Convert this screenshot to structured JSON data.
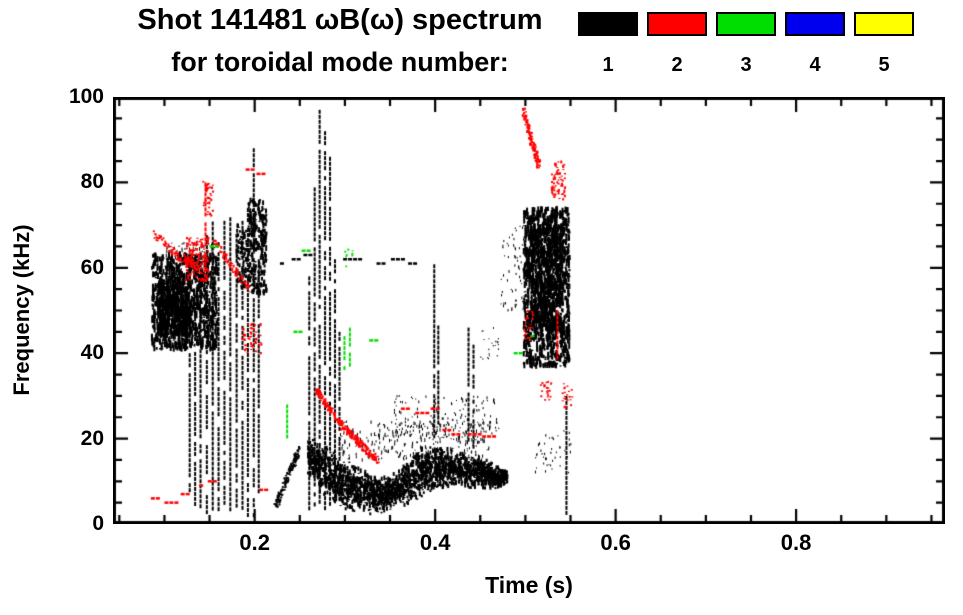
{
  "page": {
    "background": "#ffffff"
  },
  "header": {
    "title": "Shot 141481 ωB(ω) spectrum",
    "subtitle": "for toroidal mode number:"
  },
  "legend": {
    "items": [
      {
        "label": "1",
        "color": "#000000"
      },
      {
        "label": "2",
        "color": "#ff0000"
      },
      {
        "label": "3",
        "color": "#00dd00"
      },
      {
        "label": "4",
        "color": "#0000ee"
      },
      {
        "label": "5",
        "color": "#ffff00"
      }
    ]
  },
  "chart_data": {
    "type": "scatter",
    "title": "Shot 141481 ωB(ω) spectrum for toroidal mode number: 1 2 3 4 5",
    "xlabel": "Time (s)",
    "ylabel": "Frequency (kHz)",
    "xlim": [
      0.043,
      0.965
    ],
    "ylim": [
      0,
      100
    ],
    "grid": false,
    "legend_position": "top-right",
    "x_ticks": [
      {
        "v": 0.2,
        "label": "0.2"
      },
      {
        "v": 0.4,
        "label": "0.4"
      },
      {
        "v": 0.6,
        "label": "0.6"
      },
      {
        "v": 0.8,
        "label": "0.8"
      }
    ],
    "x_minor_step": 0.05,
    "y_ticks": [
      {
        "v": 0,
        "label": "0"
      },
      {
        "v": 20,
        "label": "20"
      },
      {
        "v": 40,
        "label": "40"
      },
      {
        "v": 60,
        "label": "60"
      },
      {
        "v": 80,
        "label": "80"
      },
      {
        "v": 100,
        "label": "100"
      }
    ],
    "y_minor_step": 5,
    "modes": {
      "1": "#000000",
      "2": "#ff0000",
      "3": "#00dd00",
      "4": "#0000ee",
      "5": "#ffff00"
    },
    "features": [
      {
        "mode": 1,
        "type": "speckle",
        "t": [
          0.085,
          0.158
        ],
        "f": [
          41,
          63
        ],
        "n": 900,
        "dh": [
          2,
          8
        ]
      },
      {
        "mode": 1,
        "type": "speckle",
        "t": [
          0.092,
          0.128
        ],
        "f": [
          44,
          57
        ],
        "n": 500,
        "dh": [
          2,
          8
        ]
      },
      {
        "mode": 1,
        "type": "speckle",
        "t": [
          0.1,
          0.155
        ],
        "f": [
          57,
          66
        ],
        "n": 140,
        "dh": [
          1,
          4
        ]
      },
      {
        "mode": 1,
        "type": "vlines",
        "w": 2,
        "lines": [
          [
            0.128,
            8,
            40
          ],
          [
            0.134,
            5,
            52
          ],
          [
            0.14,
            4,
            62
          ],
          [
            0.147,
            3,
            70
          ],
          [
            0.1535,
            3,
            72
          ],
          [
            0.16,
            3,
            66
          ],
          [
            0.1665,
            4,
            71
          ],
          [
            0.173,
            3,
            73
          ],
          [
            0.18,
            3,
            68
          ],
          [
            0.1865,
            3,
            71
          ],
          [
            0.1925,
            2,
            74
          ],
          [
            0.199,
            2,
            88
          ],
          [
            0.2045,
            8,
            62
          ]
        ]
      },
      {
        "mode": 1,
        "type": "speckle",
        "t": [
          0.192,
          0.212
        ],
        "f": [
          54,
          76
        ],
        "n": 260,
        "dh": [
          2,
          6
        ]
      },
      {
        "mode": 1,
        "type": "speckle",
        "t": [
          0.178,
          0.195
        ],
        "f": [
          55,
          70
        ],
        "n": 120,
        "dh": [
          2,
          5
        ]
      },
      {
        "mode": 1,
        "type": "chirp",
        "p": [
          [
            0.222,
            4
          ],
          [
            0.2475,
            17
          ]
        ],
        "n": 120,
        "jit": 1.1,
        "dh": [
          2,
          3
        ]
      },
      {
        "mode": 1,
        "type": "vlines",
        "w": 2,
        "lines": [
          [
            0.2605,
            3,
            58
          ],
          [
            0.2665,
            5,
            80
          ],
          [
            0.272,
            5,
            97
          ],
          [
            0.278,
            4,
            92
          ],
          [
            0.2835,
            5,
            86
          ],
          [
            0.289,
            5,
            62
          ],
          [
            0.294,
            6,
            45
          ]
        ]
      },
      {
        "mode": 1,
        "type": "band",
        "n": 2200,
        "dh": [
          2,
          5
        ],
        "path": [
          [
            0.258,
            16,
            5
          ],
          [
            0.272,
            13,
            6
          ],
          [
            0.287,
            11,
            6
          ],
          [
            0.302,
            9,
            6
          ],
          [
            0.317,
            8,
            5
          ],
          [
            0.332,
            7,
            5
          ],
          [
            0.347,
            7,
            4
          ],
          [
            0.362,
            9,
            5
          ],
          [
            0.377,
            11,
            6
          ],
          [
            0.392,
            13,
            6
          ],
          [
            0.407,
            13,
            5
          ],
          [
            0.422,
            13,
            5
          ],
          [
            0.437,
            12,
            4
          ],
          [
            0.452,
            12,
            4
          ],
          [
            0.467,
            11,
            3
          ],
          [
            0.479,
            11,
            2
          ]
        ]
      },
      {
        "mode": 1,
        "type": "speckle",
        "t": [
          0.29,
          0.46
        ],
        "f": [
          15,
          24
        ],
        "n": 300,
        "dh": [
          1,
          4
        ]
      },
      {
        "mode": 1,
        "type": "speckle",
        "t": [
          0.352,
          0.47
        ],
        "f": [
          20,
          30
        ],
        "n": 160,
        "dh": [
          1,
          3
        ]
      },
      {
        "mode": 1,
        "type": "vlines",
        "w": 2,
        "lines": [
          [
            0.399,
            20,
            62
          ],
          [
            0.4035,
            22,
            50
          ],
          [
            0.437,
            19,
            46
          ],
          [
            0.4425,
            18,
            42
          ]
        ]
      },
      {
        "mode": 1,
        "type": "hdashes",
        "h": 2.5,
        "lines": [
          [
            0.228,
            0.237,
            61
          ],
          [
            0.241,
            0.25,
            62
          ],
          [
            0.254,
            0.261,
            63
          ],
          [
            0.298,
            0.316,
            62
          ],
          [
            0.335,
            0.346,
            61
          ],
          [
            0.351,
            0.363,
            62
          ],
          [
            0.37,
            0.378,
            61
          ]
        ]
      },
      {
        "mode": 1,
        "type": "speckle",
        "t": [
          0.497,
          0.548
        ],
        "f": [
          37,
          74
        ],
        "n": 1100,
        "dh": [
          2,
          8
        ]
      },
      {
        "mode": 1,
        "type": "speckle",
        "t": [
          0.505,
          0.54
        ],
        "f": [
          45,
          70
        ],
        "n": 520,
        "dh": [
          2,
          8
        ]
      },
      {
        "mode": 1,
        "type": "speckle",
        "t": [
          0.472,
          0.5
        ],
        "f": [
          50,
          70
        ],
        "n": 70,
        "dh": [
          1,
          3
        ]
      },
      {
        "mode": 1,
        "type": "speckle",
        "t": [
          0.51,
          0.552
        ],
        "f": [
          12,
          22
        ],
        "n": 45,
        "dh": [
          1,
          3
        ]
      },
      {
        "mode": 1,
        "type": "vlines",
        "w": 2,
        "lines": [
          [
            0.5455,
            2,
            30
          ]
        ]
      },
      {
        "mode": 1,
        "type": "speckle",
        "t": [
          0.45,
          0.47
        ],
        "f": [
          38,
          46
        ],
        "n": 22,
        "dh": [
          1,
          2
        ]
      },
      {
        "mode": 2,
        "type": "chirp",
        "p": [
          [
            0.088,
            68
          ],
          [
            0.112,
            63
          ],
          [
            0.13,
            61
          ]
        ],
        "n": 90,
        "jit": 1,
        "dh": [
          2,
          2.5
        ]
      },
      {
        "mode": 2,
        "type": "speckle",
        "t": [
          0.122,
          0.148
        ],
        "f": [
          57,
          67
        ],
        "n": 140,
        "dh": [
          2,
          3
        ]
      },
      {
        "mode": 2,
        "type": "vlines",
        "w": 2,
        "lines": [
          [
            0.1455,
            60,
            80
          ]
        ]
      },
      {
        "mode": 2,
        "type": "speckle",
        "t": [
          0.142,
          0.153
        ],
        "f": [
          72,
          81
        ],
        "n": 35,
        "dh": [
          2,
          2.5
        ]
      },
      {
        "mode": 2,
        "type": "chirp",
        "p": [
          [
            0.155,
            66
          ],
          [
            0.175,
            60
          ],
          [
            0.193,
            55
          ]
        ],
        "n": 80,
        "jit": 1,
        "dh": [
          2,
          2.5
        ]
      },
      {
        "mode": 2,
        "type": "speckle",
        "t": [
          0.185,
          0.207
        ],
        "f": [
          40,
          47
        ],
        "n": 55,
        "dh": [
          2,
          2.5
        ]
      },
      {
        "mode": 2,
        "type": "hdashes",
        "h": 2.5,
        "lines": [
          [
            0.19,
            0.198,
            83
          ],
          [
            0.202,
            0.209,
            82
          ]
        ]
      },
      {
        "mode": 2,
        "type": "chirp",
        "p": [
          [
            0.268,
            31
          ],
          [
            0.3,
            22
          ],
          [
            0.335,
            15
          ]
        ],
        "n": 230,
        "jit": 0.9,
        "dh": [
          2,
          3
        ]
      },
      {
        "mode": 2,
        "type": "hdashes",
        "h": 2.5,
        "lines": [
          [
            0.362,
            0.372,
            27
          ],
          [
            0.378,
            0.39,
            26
          ],
          [
            0.395,
            0.402,
            27
          ],
          [
            0.408,
            0.414,
            22
          ],
          [
            0.418,
            0.43,
            21
          ],
          [
            0.436,
            0.448,
            21
          ],
          [
            0.452,
            0.465,
            20.5
          ]
        ]
      },
      {
        "mode": 2,
        "type": "chirp",
        "p": [
          [
            0.497,
            97
          ],
          [
            0.508,
            88
          ],
          [
            0.5145,
            84
          ]
        ],
        "n": 110,
        "jit": 1.2,
        "dh": [
          2,
          3
        ]
      },
      {
        "mode": 2,
        "type": "speckle",
        "t": [
          0.528,
          0.543
        ],
        "f": [
          76,
          85
        ],
        "n": 60,
        "dh": [
          2,
          3
        ]
      },
      {
        "mode": 2,
        "type": "vlines",
        "w": 2,
        "lines": [
          [
            0.5355,
            39,
            50
          ]
        ]
      },
      {
        "mode": 2,
        "type": "speckle",
        "t": [
          0.515,
          0.528
        ],
        "f": [
          29,
          34
        ],
        "n": 22,
        "dh": [
          2,
          2
        ]
      },
      {
        "mode": 2,
        "type": "speckle",
        "t": [
          0.54,
          0.551
        ],
        "f": [
          27,
          33
        ],
        "n": 22,
        "dh": [
          2,
          2
        ]
      },
      {
        "mode": 2,
        "type": "speckle",
        "t": [
          0.497,
          0.508
        ],
        "f": [
          43,
          50
        ],
        "n": 28,
        "dh": [
          2,
          2
        ]
      },
      {
        "mode": 2,
        "type": "hdashes",
        "h": 2.5,
        "lines": [
          [
            0.085,
            0.095,
            6
          ],
          [
            0.1,
            0.112,
            5
          ],
          [
            0.118,
            0.128,
            7
          ],
          [
            0.133,
            0.143,
            9
          ],
          [
            0.148,
            0.156,
            10
          ],
          [
            0.205,
            0.213,
            8
          ]
        ]
      },
      {
        "mode": 3,
        "type": "vlines",
        "w": 2,
        "lines": [
          [
            0.236,
            19,
            28
          ],
          [
            0.2995,
            34,
            44
          ],
          [
            0.3055,
            36,
            46
          ]
        ]
      },
      {
        "mode": 3,
        "type": "hdashes",
        "h": 2.5,
        "lines": [
          [
            0.243,
            0.25,
            45
          ],
          [
            0.327,
            0.335,
            43
          ],
          [
            0.15,
            0.157,
            65
          ],
          [
            0.252,
            0.258,
            64
          ],
          [
            0.487,
            0.493,
            40
          ],
          [
            0.5,
            0.506,
            44
          ]
        ]
      },
      {
        "mode": 3,
        "type": "speckle",
        "t": [
          0.298,
          0.308
        ],
        "f": [
          60,
          65
        ],
        "n": 8,
        "dh": [
          2,
          2
        ]
      }
    ]
  }
}
